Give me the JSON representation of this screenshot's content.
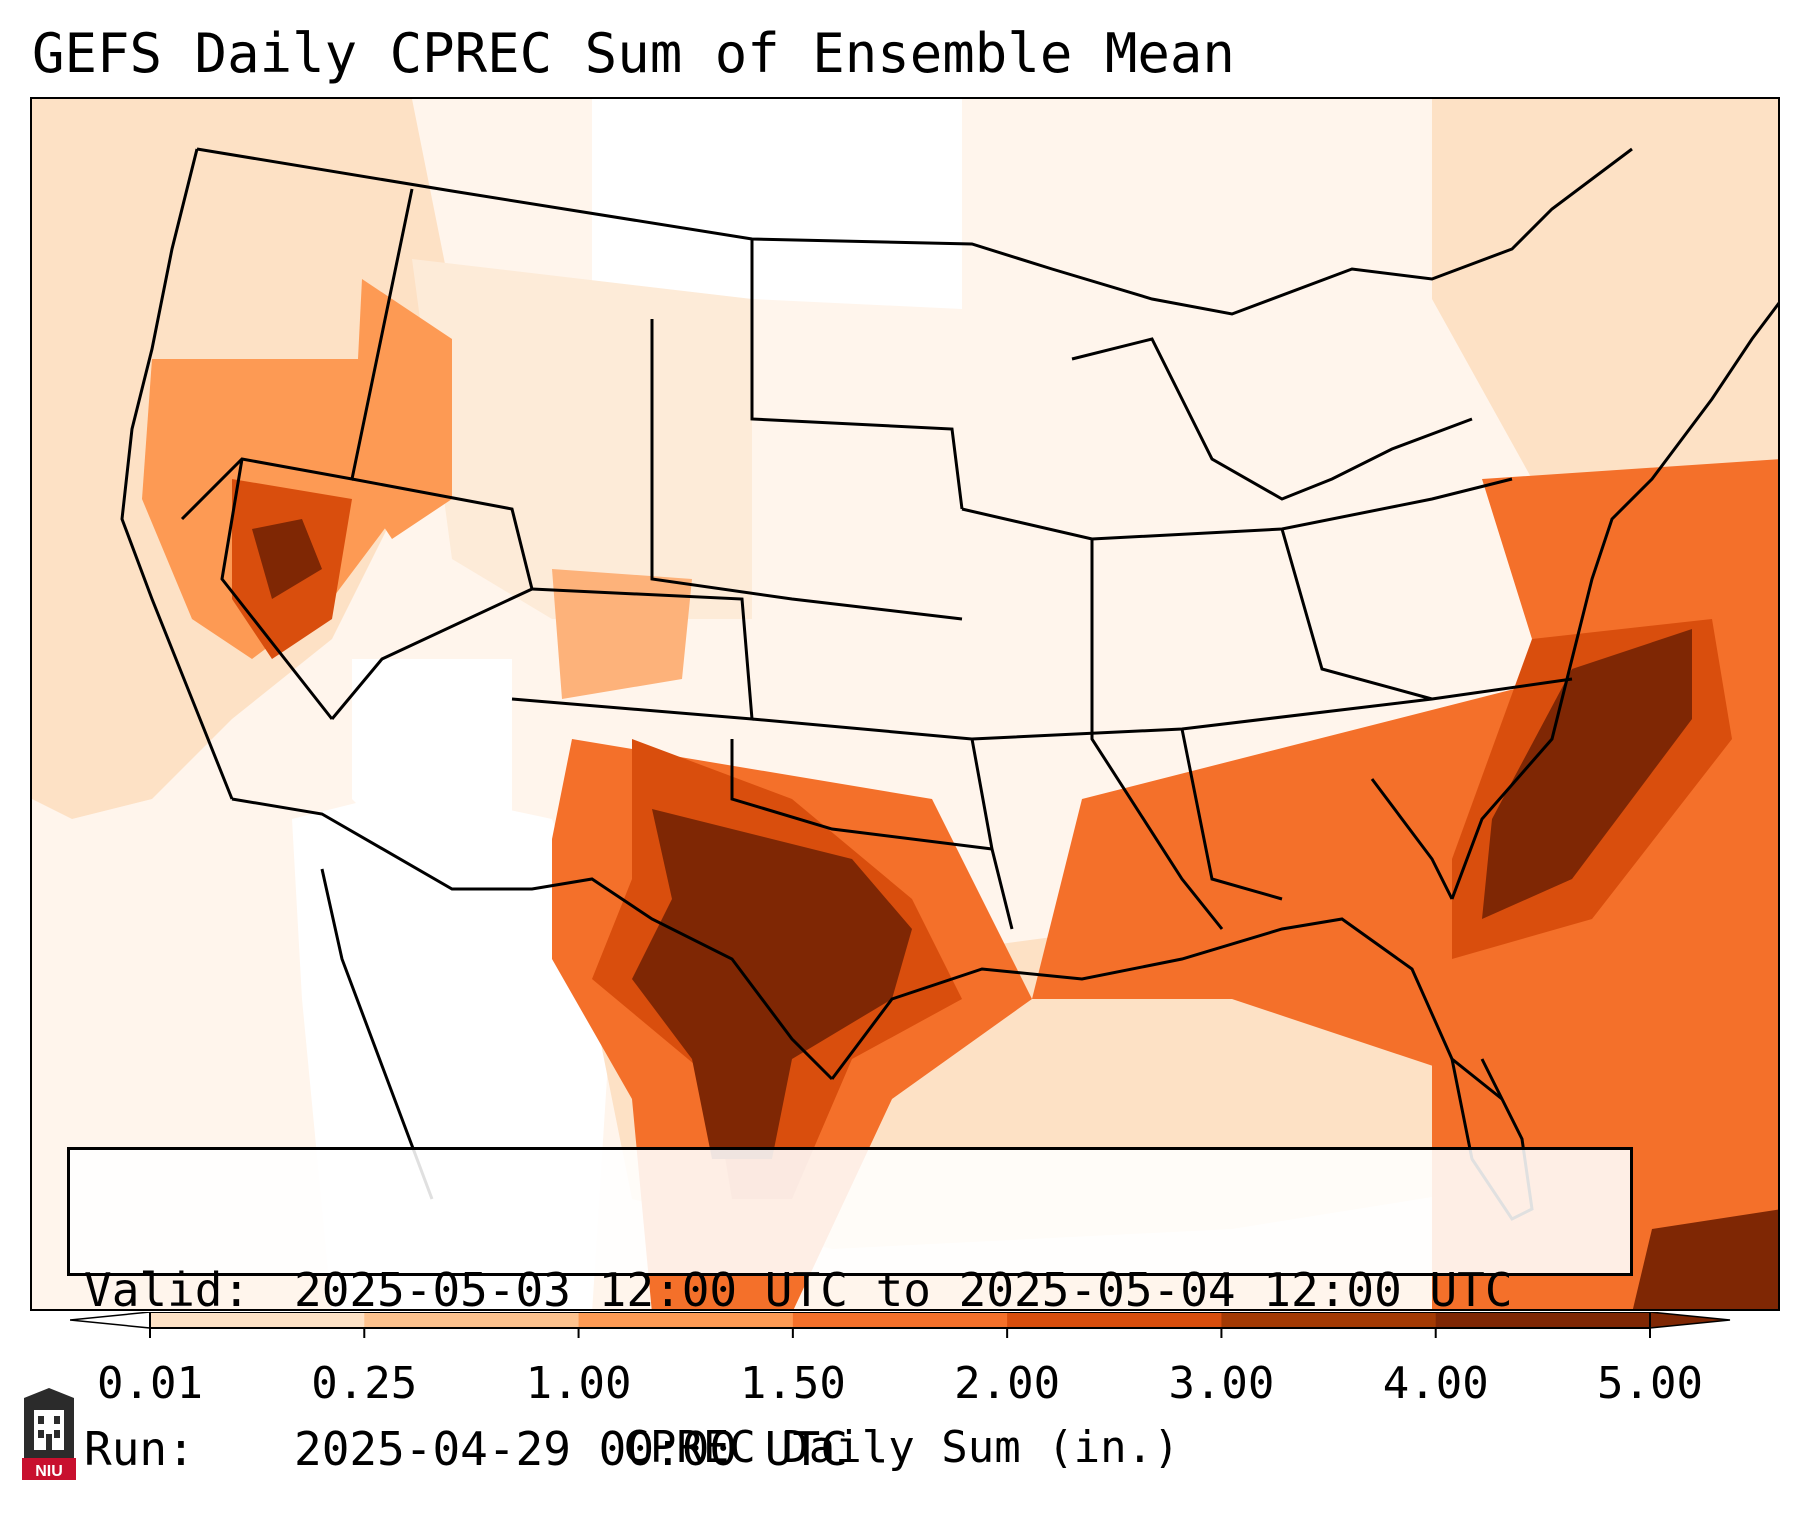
{
  "title": "GEFS Daily CPREC Sum of Ensemble Mean",
  "info": {
    "valid_label": "Valid:",
    "valid_value": "2025-05-03 12:00 UTC to 2025-05-04 12:00 UTC",
    "run_label": "Run:",
    "run_value": "2025-04-29 00:00 UTC"
  },
  "colorbar": {
    "label": "CPREC Daily Sum (in.)",
    "ticks": [
      "0.01",
      "0.25",
      "1.00",
      "1.50",
      "2.00",
      "3.00",
      "4.00",
      "5.00"
    ],
    "colors": [
      "#fff5eb",
      "#fde1c5",
      "#fdc28e",
      "#fd9a54",
      "#f4702a",
      "#d94e0d",
      "#a33a04",
      "#7f2704"
    ],
    "under_color": "#ffffff",
    "over_color": "#7f2704"
  },
  "logo": {
    "text": "NIU"
  }
}
